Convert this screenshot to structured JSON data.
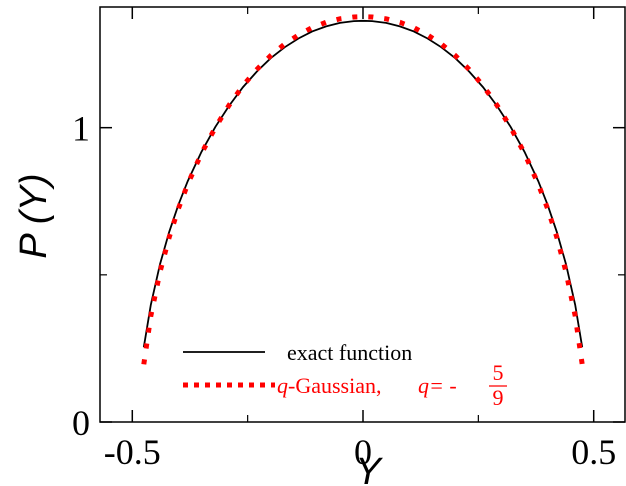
{
  "chart_data": {
    "type": "line",
    "title": "",
    "xlabel": "Y",
    "ylabel": "P (Y)",
    "xlim": [
      -0.57,
      0.57
    ],
    "ylim": [
      0,
      1.41
    ],
    "x_ticks": [
      -0.5,
      0,
      0.5
    ],
    "x_tick_labels": [
      "-0.5",
      "0",
      "0.5"
    ],
    "y_ticks": [
      0,
      1
    ],
    "y_tick_labels": [
      "0",
      "1"
    ],
    "grid": false,
    "legend_position": "bottom-center",
    "series": [
      {
        "name": "exact function",
        "style": "solid",
        "color": "#000000",
        "x": [
          -0.475,
          -0.46,
          -0.44,
          -0.42,
          -0.4,
          -0.38,
          -0.35,
          -0.32,
          -0.29,
          -0.26,
          -0.23,
          -0.2,
          -0.17,
          -0.14,
          -0.11,
          -0.08,
          -0.05,
          -0.02,
          0,
          0.02,
          0.05,
          0.08,
          0.11,
          0.14,
          0.17,
          0.2,
          0.23,
          0.26,
          0.29,
          0.32,
          0.35,
          0.38,
          0.4,
          0.42,
          0.44,
          0.46,
          0.475
        ],
        "y": [
          0.254,
          0.398,
          0.536,
          0.646,
          0.738,
          0.818,
          0.918,
          1.003,
          1.075,
          1.138,
          1.191,
          1.236,
          1.273,
          1.303,
          1.327,
          1.344,
          1.356,
          1.362,
          1.363,
          1.362,
          1.356,
          1.344,
          1.327,
          1.303,
          1.273,
          1.236,
          1.191,
          1.138,
          1.075,
          1.003,
          0.918,
          0.818,
          0.738,
          0.646,
          0.536,
          0.398,
          0.254
        ]
      },
      {
        "name": "q-Gaussian,",
        "style": "dotted",
        "color": "#ff0000",
        "q_label": "q= -",
        "q_numerator": "5",
        "q_denominator": "9",
        "x": [
          -0.475,
          -0.46,
          -0.44,
          -0.42,
          -0.4,
          -0.38,
          -0.35,
          -0.32,
          -0.29,
          -0.26,
          -0.23,
          -0.2,
          -0.17,
          -0.14,
          -0.11,
          -0.08,
          -0.05,
          -0.02,
          0,
          0.02,
          0.05,
          0.08,
          0.11,
          0.14,
          0.17,
          0.2,
          0.23,
          0.26,
          0.29,
          0.32,
          0.35,
          0.38,
          0.4,
          0.42,
          0.44,
          0.46,
          0.475
        ],
        "y": [
          0.196,
          0.36,
          0.51,
          0.628,
          0.725,
          0.808,
          0.913,
          1.001,
          1.077,
          1.143,
          1.198,
          1.245,
          1.284,
          1.315,
          1.34,
          1.358,
          1.37,
          1.376,
          1.377,
          1.376,
          1.37,
          1.358,
          1.34,
          1.315,
          1.284,
          1.245,
          1.198,
          1.143,
          1.077,
          1.001,
          0.913,
          0.808,
          0.725,
          0.628,
          0.51,
          0.36,
          0.196
        ]
      }
    ]
  }
}
